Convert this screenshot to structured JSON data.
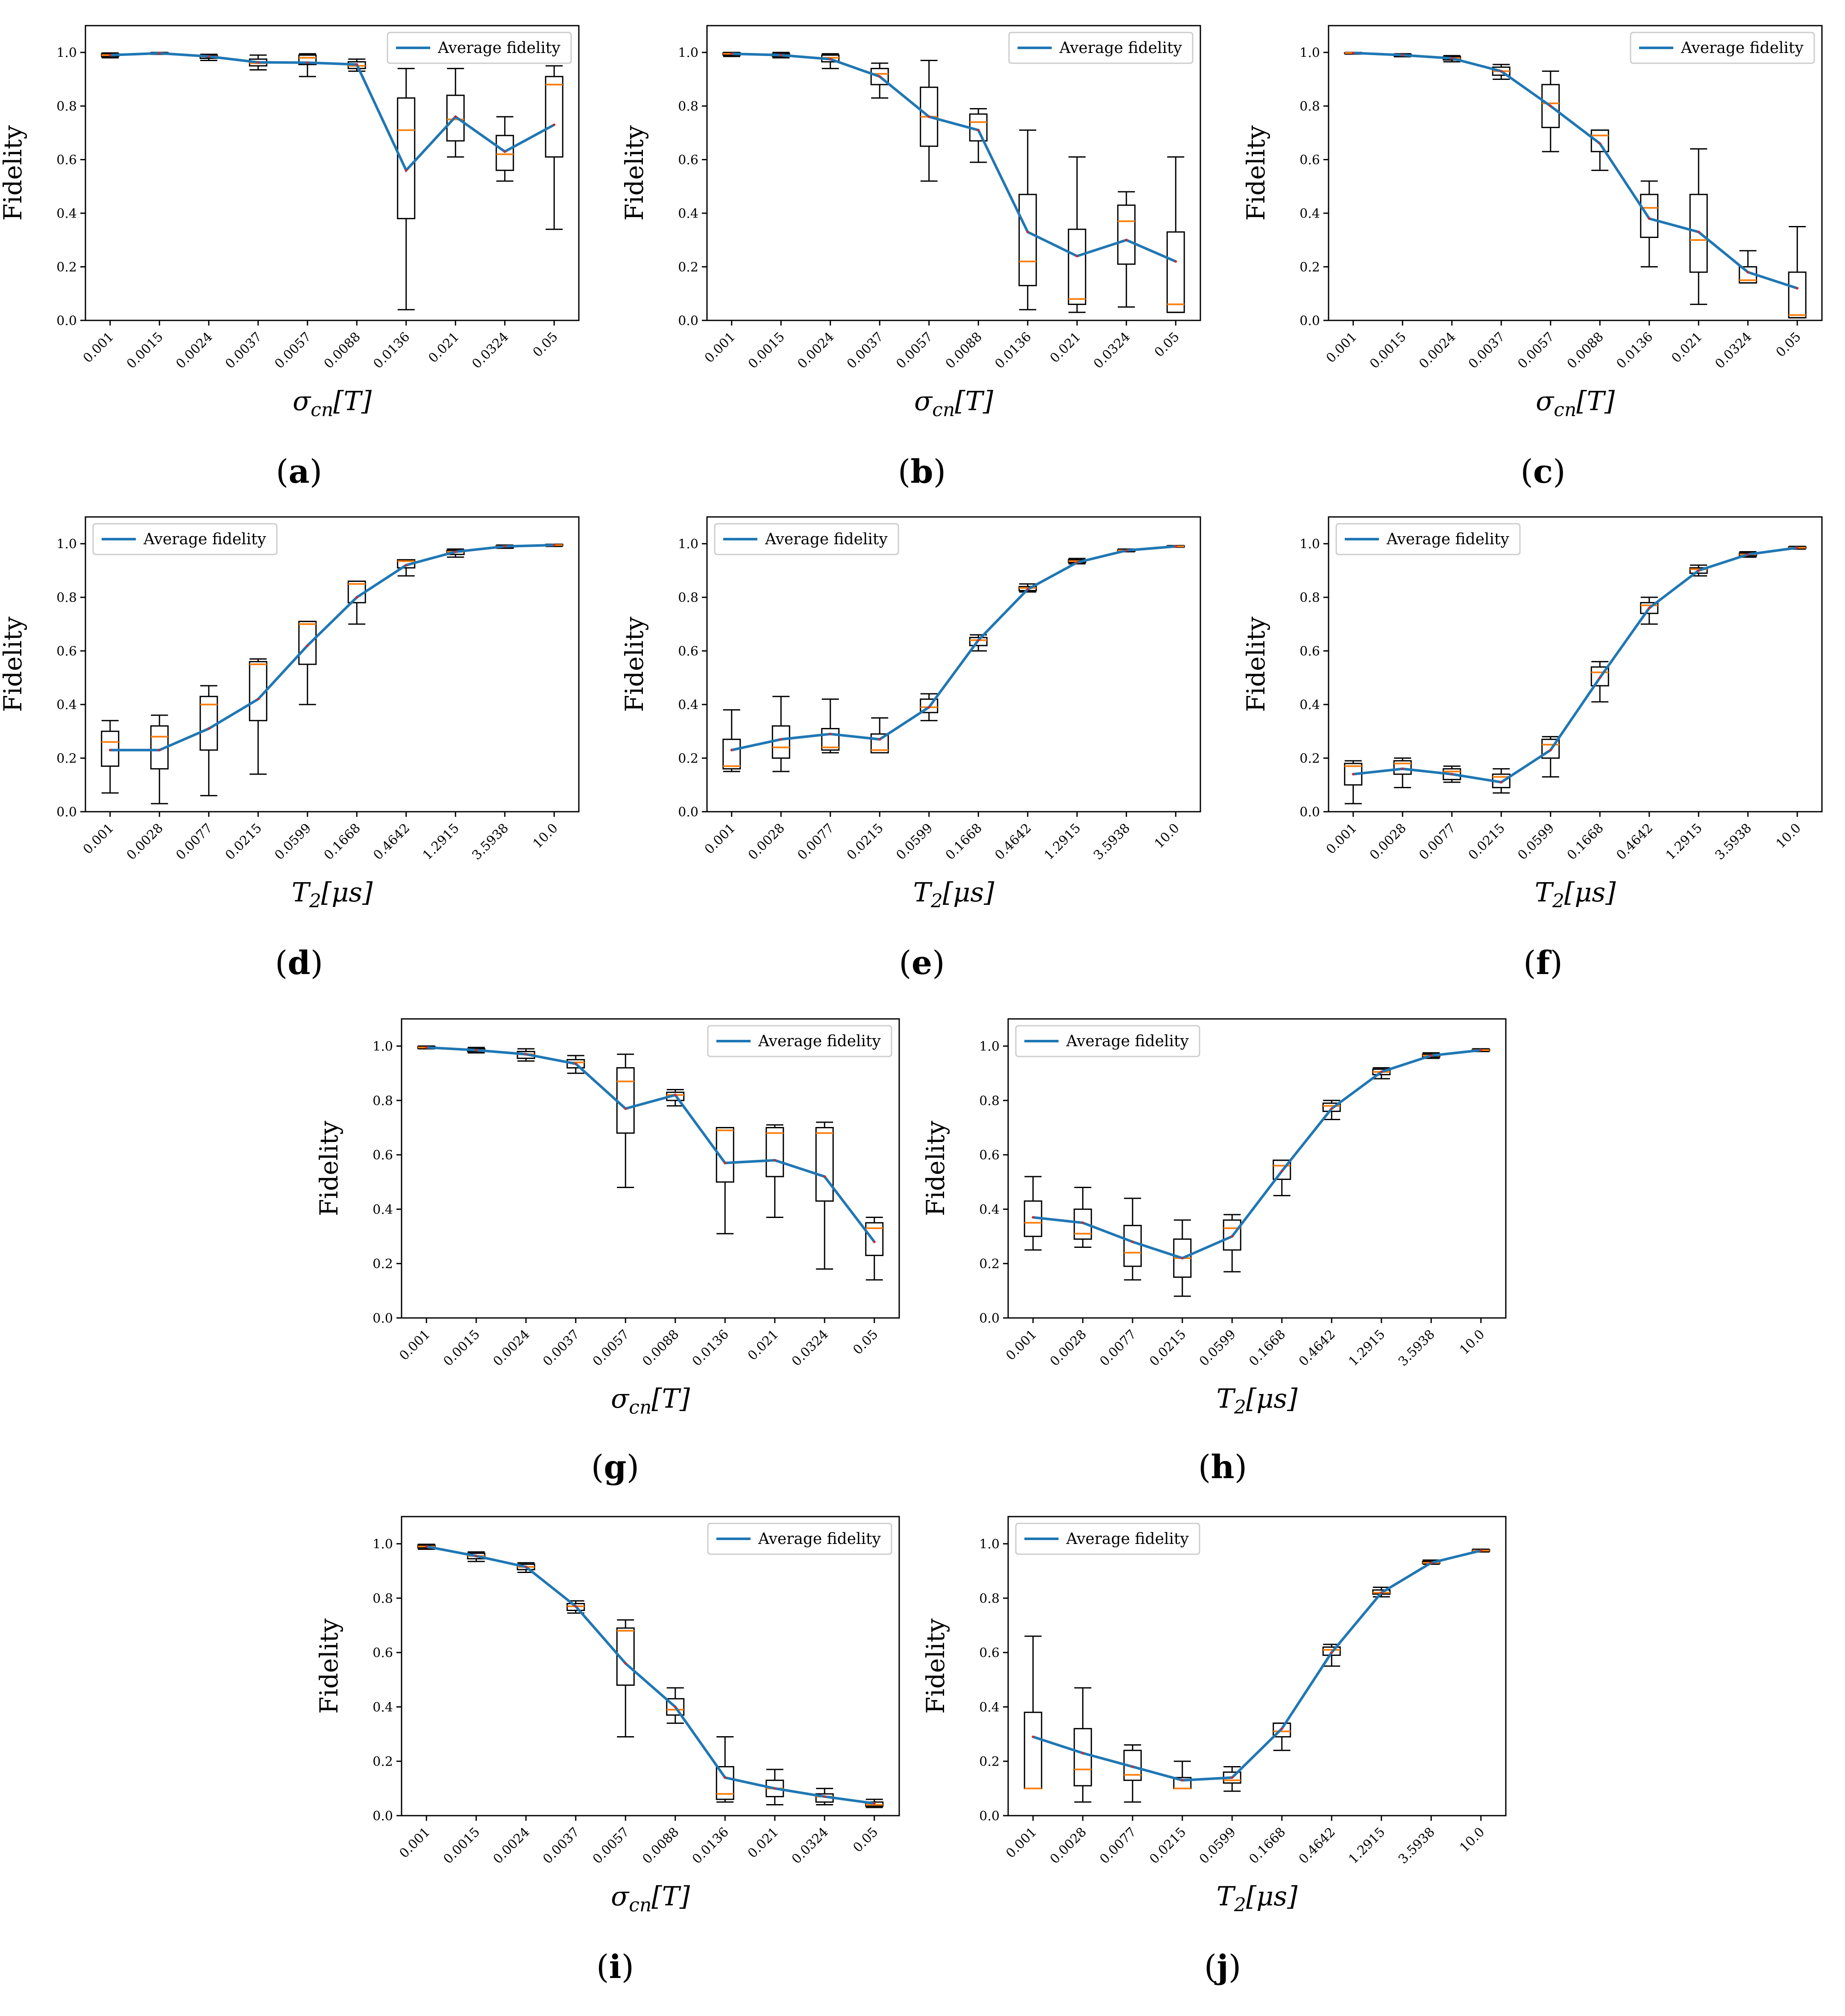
{
  "figure": {
    "legend_label": "Average fidelity",
    "y_label": "Fidelity"
  },
  "chart_data": [
    {
      "panel": "a",
      "type": "box+line",
      "xlabel_main": "σ",
      "xlabel_sub": "cn",
      "xlabel_unit": "[T]",
      "ylabel": "Fidelity",
      "ylim": [
        0,
        1.1
      ],
      "y_ticks": [
        "0.0",
        "0.2",
        "0.4",
        "0.6",
        "0.8",
        "1.0"
      ],
      "categories": [
        "0.001",
        "0.0015",
        "0.0024",
        "0.0037",
        "0.0057",
        "0.0088",
        "0.0136",
        "0.021",
        "0.0324",
        "0.05"
      ],
      "average": [
        0.99,
        0.997,
        0.985,
        0.963,
        0.962,
        0.955,
        0.56,
        0.76,
        0.63,
        0.73
      ],
      "median": [
        0.99,
        0.997,
        0.985,
        0.96,
        0.98,
        0.95,
        0.71,
        0.75,
        0.62,
        0.88
      ],
      "q1": [
        0.985,
        0.995,
        0.978,
        0.95,
        0.955,
        0.94,
        0.38,
        0.67,
        0.56,
        0.61
      ],
      "q3": [
        0.995,
        0.999,
        0.99,
        0.975,
        0.99,
        0.965,
        0.83,
        0.84,
        0.69,
        0.91
      ],
      "wmin": [
        0.98,
        0.993,
        0.97,
        0.935,
        0.91,
        0.93,
        0.04,
        0.61,
        0.52,
        0.34
      ],
      "wmax": [
        0.998,
        1.0,
        0.993,
        0.99,
        0.995,
        0.975,
        0.94,
        0.94,
        0.76,
        0.95
      ],
      "legend_position": "top-right"
    },
    {
      "panel": "b",
      "type": "box+line",
      "xlabel_main": "σ",
      "xlabel_sub": "cn",
      "xlabel_unit": "[T]",
      "ylabel": "Fidelity",
      "ylim": [
        0,
        1.1
      ],
      "y_ticks": [
        "0.0",
        "0.2",
        "0.4",
        "0.6",
        "0.8",
        "1.0"
      ],
      "categories": [
        "0.001",
        "0.0015",
        "0.0024",
        "0.0037",
        "0.0057",
        "0.0088",
        "0.0136",
        "0.021",
        "0.0324",
        "0.05"
      ],
      "average": [
        0.995,
        0.99,
        0.975,
        0.91,
        0.76,
        0.71,
        0.33,
        0.24,
        0.3,
        0.22
      ],
      "median": [
        0.995,
        0.99,
        0.98,
        0.92,
        0.76,
        0.74,
        0.22,
        0.08,
        0.37,
        0.06
      ],
      "q1": [
        0.99,
        0.985,
        0.965,
        0.88,
        0.65,
        0.67,
        0.13,
        0.06,
        0.21,
        0.03
      ],
      "q3": [
        0.998,
        0.995,
        0.99,
        0.94,
        0.87,
        0.77,
        0.47,
        0.34,
        0.43,
        0.33
      ],
      "wmin": [
        0.985,
        0.98,
        0.94,
        0.83,
        0.52,
        0.59,
        0.04,
        0.03,
        0.05,
        0.03
      ],
      "wmax": [
        1.0,
        1.0,
        0.995,
        0.96,
        0.97,
        0.79,
        0.71,
        0.61,
        0.48,
        0.61
      ],
      "legend_position": "top-right"
    },
    {
      "panel": "c",
      "type": "box+line",
      "xlabel_main": "σ",
      "xlabel_sub": "cn",
      "xlabel_unit": "[T]",
      "ylabel": "Fidelity",
      "ylim": [
        0,
        1.1
      ],
      "y_ticks": [
        "0.0",
        "0.2",
        "0.4",
        "0.6",
        "0.8",
        "1.0"
      ],
      "categories": [
        "0.001",
        "0.0015",
        "0.0024",
        "0.0037",
        "0.0057",
        "0.0088",
        "0.0136",
        "0.021",
        "0.0324",
        "0.05"
      ],
      "average": [
        0.998,
        0.99,
        0.978,
        0.93,
        0.8,
        0.66,
        0.38,
        0.33,
        0.18,
        0.12
      ],
      "median": [
        0.998,
        0.99,
        0.978,
        0.93,
        0.81,
        0.69,
        0.42,
        0.3,
        0.15,
        0.02
      ],
      "q1": [
        0.996,
        0.987,
        0.972,
        0.915,
        0.72,
        0.63,
        0.31,
        0.18,
        0.14,
        0.01
      ],
      "q3": [
        0.999,
        0.993,
        0.984,
        0.945,
        0.88,
        0.71,
        0.47,
        0.47,
        0.2,
        0.18
      ],
      "wmin": [
        0.994,
        0.984,
        0.965,
        0.9,
        0.63,
        0.56,
        0.2,
        0.06,
        0.14,
        0.01
      ],
      "wmax": [
        1.0,
        0.995,
        0.988,
        0.955,
        0.93,
        0.71,
        0.52,
        0.64,
        0.26,
        0.35
      ],
      "legend_position": "top-right"
    },
    {
      "panel": "d",
      "type": "box+line",
      "xlabel_main": "T",
      "xlabel_sub": "2",
      "xlabel_unit": "[μs]",
      "ylabel": "Fidelity",
      "ylim": [
        0,
        1.1
      ],
      "y_ticks": [
        "0.0",
        "0.2",
        "0.4",
        "0.6",
        "0.8",
        "1.0"
      ],
      "categories": [
        "0.001",
        "0.0028",
        "0.0077",
        "0.0215",
        "0.0599",
        "0.1668",
        "0.4642",
        "1.2915",
        "3.5938",
        "10.0"
      ],
      "average": [
        0.23,
        0.23,
        0.31,
        0.42,
        0.62,
        0.8,
        0.92,
        0.97,
        0.99,
        0.995
      ],
      "median": [
        0.26,
        0.28,
        0.4,
        0.55,
        0.7,
        0.85,
        0.935,
        0.97,
        0.99,
        0.995
      ],
      "q1": [
        0.17,
        0.16,
        0.23,
        0.34,
        0.55,
        0.78,
        0.91,
        0.96,
        0.985,
        0.993
      ],
      "q3": [
        0.3,
        0.32,
        0.43,
        0.56,
        0.71,
        0.86,
        0.94,
        0.975,
        0.993,
        0.997
      ],
      "wmin": [
        0.07,
        0.03,
        0.06,
        0.14,
        0.4,
        0.7,
        0.88,
        0.95,
        0.983,
        0.99
      ],
      "wmax": [
        0.34,
        0.36,
        0.47,
        0.57,
        0.71,
        0.86,
        0.94,
        0.98,
        0.995,
        0.998
      ],
      "legend_position": "top-left"
    },
    {
      "panel": "e",
      "type": "box+line",
      "xlabel_main": "T",
      "xlabel_sub": "2",
      "xlabel_unit": "[μs]",
      "ylabel": "Fidelity",
      "ylim": [
        0,
        1.1
      ],
      "y_ticks": [
        "0.0",
        "0.2",
        "0.4",
        "0.6",
        "0.8",
        "1.0"
      ],
      "categories": [
        "0.001",
        "0.0028",
        "0.0077",
        "0.0215",
        "0.0599",
        "0.1668",
        "0.4642",
        "1.2915",
        "3.5938",
        "10.0"
      ],
      "average": [
        0.23,
        0.27,
        0.29,
        0.27,
        0.39,
        0.64,
        0.83,
        0.93,
        0.975,
        0.99
      ],
      "median": [
        0.17,
        0.24,
        0.24,
        0.23,
        0.39,
        0.64,
        0.835,
        0.935,
        0.975,
        0.99
      ],
      "q1": [
        0.16,
        0.2,
        0.23,
        0.22,
        0.37,
        0.62,
        0.825,
        0.93,
        0.972,
        0.988
      ],
      "q3": [
        0.27,
        0.32,
        0.31,
        0.29,
        0.42,
        0.65,
        0.84,
        0.94,
        0.978,
        0.992
      ],
      "wmin": [
        0.15,
        0.15,
        0.22,
        0.22,
        0.34,
        0.6,
        0.82,
        0.925,
        0.97,
        0.987
      ],
      "wmax": [
        0.38,
        0.43,
        0.42,
        0.35,
        0.44,
        0.66,
        0.85,
        0.945,
        0.98,
        0.993
      ],
      "legend_position": "top-left"
    },
    {
      "panel": "f",
      "type": "box+line",
      "xlabel_main": "T",
      "xlabel_sub": "2",
      "xlabel_unit": "[μs]",
      "ylabel": "Fidelity",
      "ylim": [
        0,
        1.1
      ],
      "y_ticks": [
        "0.0",
        "0.2",
        "0.4",
        "0.6",
        "0.8",
        "1.0"
      ],
      "categories": [
        "0.001",
        "0.0028",
        "0.0077",
        "0.0215",
        "0.0599",
        "0.1668",
        "0.4642",
        "1.2915",
        "3.5938",
        "10.0"
      ],
      "average": [
        0.14,
        0.16,
        0.14,
        0.11,
        0.23,
        0.5,
        0.76,
        0.9,
        0.96,
        0.985
      ],
      "median": [
        0.17,
        0.18,
        0.15,
        0.13,
        0.25,
        0.52,
        0.77,
        0.905,
        0.96,
        0.985
      ],
      "q1": [
        0.1,
        0.14,
        0.12,
        0.09,
        0.2,
        0.47,
        0.74,
        0.89,
        0.955,
        0.983
      ],
      "q3": [
        0.18,
        0.19,
        0.16,
        0.14,
        0.27,
        0.54,
        0.78,
        0.91,
        0.965,
        0.988
      ],
      "wmin": [
        0.03,
        0.09,
        0.11,
        0.07,
        0.13,
        0.41,
        0.7,
        0.88,
        0.95,
        0.98
      ],
      "wmax": [
        0.19,
        0.2,
        0.17,
        0.16,
        0.28,
        0.56,
        0.8,
        0.92,
        0.97,
        0.99
      ],
      "legend_position": "top-left"
    },
    {
      "panel": "g",
      "type": "box+line",
      "xlabel_main": "σ",
      "xlabel_sub": "cn",
      "xlabel_unit": "[T]",
      "ylabel": "Fidelity",
      "ylim": [
        0,
        1.1
      ],
      "y_ticks": [
        "0.0",
        "0.2",
        "0.4",
        "0.6",
        "0.8",
        "1.0"
      ],
      "categories": [
        "0.001",
        "0.0015",
        "0.0024",
        "0.0037",
        "0.0057",
        "0.0088",
        "0.0136",
        "0.021",
        "0.0324",
        "0.05"
      ],
      "average": [
        0.995,
        0.985,
        0.97,
        0.935,
        0.77,
        0.82,
        0.57,
        0.58,
        0.52,
        0.28
      ],
      "median": [
        0.995,
        0.985,
        0.97,
        0.94,
        0.87,
        0.82,
        0.69,
        0.68,
        0.68,
        0.33
      ],
      "q1": [
        0.992,
        0.98,
        0.955,
        0.92,
        0.68,
        0.8,
        0.5,
        0.52,
        0.43,
        0.23
      ],
      "q3": [
        0.998,
        0.99,
        0.98,
        0.95,
        0.92,
        0.83,
        0.7,
        0.7,
        0.7,
        0.35
      ],
      "wmin": [
        0.99,
        0.975,
        0.945,
        0.9,
        0.48,
        0.78,
        0.31,
        0.37,
        0.18,
        0.14
      ],
      "wmax": [
        1.0,
        0.995,
        0.99,
        0.965,
        0.97,
        0.84,
        0.7,
        0.71,
        0.72,
        0.37
      ],
      "legend_position": "top-right"
    },
    {
      "panel": "h",
      "type": "box+line",
      "xlabel_main": "T",
      "xlabel_sub": "2",
      "xlabel_unit": "[μs]",
      "ylabel": "Fidelity",
      "ylim": [
        0,
        1.1
      ],
      "y_ticks": [
        "0.0",
        "0.2",
        "0.4",
        "0.6",
        "0.8",
        "1.0"
      ],
      "categories": [
        "0.001",
        "0.0028",
        "0.0077",
        "0.0215",
        "0.0599",
        "0.1668",
        "0.4642",
        "1.2915",
        "3.5938",
        "10.0"
      ],
      "average": [
        0.37,
        0.35,
        0.28,
        0.22,
        0.3,
        0.54,
        0.77,
        0.905,
        0.965,
        0.985
      ],
      "median": [
        0.35,
        0.31,
        0.24,
        0.22,
        0.33,
        0.56,
        0.78,
        0.905,
        0.965,
        0.985
      ],
      "q1": [
        0.3,
        0.29,
        0.19,
        0.15,
        0.25,
        0.51,
        0.76,
        0.895,
        0.96,
        0.983
      ],
      "q3": [
        0.43,
        0.4,
        0.34,
        0.29,
        0.36,
        0.58,
        0.79,
        0.915,
        0.97,
        0.988
      ],
      "wmin": [
        0.25,
        0.26,
        0.14,
        0.08,
        0.17,
        0.45,
        0.73,
        0.88,
        0.955,
        0.98
      ],
      "wmax": [
        0.52,
        0.48,
        0.44,
        0.36,
        0.38,
        0.58,
        0.8,
        0.92,
        0.975,
        0.99
      ],
      "legend_position": "top-left"
    },
    {
      "panel": "i",
      "type": "box+line",
      "xlabel_main": "σ",
      "xlabel_sub": "cn",
      "xlabel_unit": "[T]",
      "ylabel": "Fidelity",
      "ylim": [
        0,
        1.1
      ],
      "y_ticks": [
        "0.0",
        "0.2",
        "0.4",
        "0.6",
        "0.8",
        "1.0"
      ],
      "categories": [
        "0.001",
        "0.0015",
        "0.0024",
        "0.0037",
        "0.0057",
        "0.0088",
        "0.0136",
        "0.021",
        "0.0324",
        "0.05"
      ],
      "average": [
        0.99,
        0.955,
        0.915,
        0.77,
        0.56,
        0.4,
        0.14,
        0.1,
        0.07,
        0.045
      ],
      "median": [
        0.99,
        0.955,
        0.915,
        0.77,
        0.68,
        0.39,
        0.08,
        0.1,
        0.07,
        0.04
      ],
      "q1": [
        0.985,
        0.945,
        0.905,
        0.755,
        0.48,
        0.37,
        0.06,
        0.07,
        0.05,
        0.035
      ],
      "q3": [
        0.995,
        0.965,
        0.925,
        0.78,
        0.69,
        0.43,
        0.18,
        0.13,
        0.08,
        0.05
      ],
      "wmin": [
        0.98,
        0.935,
        0.895,
        0.745,
        0.29,
        0.34,
        0.05,
        0.04,
        0.04,
        0.03
      ],
      "wmax": [
        0.998,
        0.97,
        0.93,
        0.79,
        0.72,
        0.47,
        0.29,
        0.17,
        0.1,
        0.06
      ],
      "legend_position": "top-right"
    },
    {
      "panel": "j",
      "type": "box+line",
      "xlabel_main": "T",
      "xlabel_sub": "2",
      "xlabel_unit": "[μs]",
      "ylabel": "Fidelity",
      "ylim": [
        0,
        1.1
      ],
      "y_ticks": [
        "0.0",
        "0.2",
        "0.4",
        "0.6",
        "0.8",
        "1.0"
      ],
      "categories": [
        "0.001",
        "0.0028",
        "0.0077",
        "0.0215",
        "0.0599",
        "0.1668",
        "0.4642",
        "1.2915",
        "3.5938",
        "10.0"
      ],
      "average": [
        0.29,
        0.23,
        0.18,
        0.13,
        0.14,
        0.32,
        0.6,
        0.82,
        0.93,
        0.975
      ],
      "median": [
        0.1,
        0.17,
        0.15,
        0.1,
        0.13,
        0.31,
        0.61,
        0.82,
        0.93,
        0.975
      ],
      "q1": [
        0.1,
        0.11,
        0.13,
        0.1,
        0.12,
        0.29,
        0.59,
        0.815,
        0.928,
        0.972
      ],
      "q3": [
        0.38,
        0.32,
        0.24,
        0.14,
        0.16,
        0.34,
        0.62,
        0.83,
        0.935,
        0.978
      ],
      "wmin": [
        0.1,
        0.05,
        0.05,
        0.1,
        0.09,
        0.24,
        0.55,
        0.805,
        0.925,
        0.97
      ],
      "wmax": [
        0.66,
        0.47,
        0.26,
        0.2,
        0.18,
        0.34,
        0.63,
        0.84,
        0.94,
        0.98
      ],
      "legend_position": "top-left"
    }
  ]
}
